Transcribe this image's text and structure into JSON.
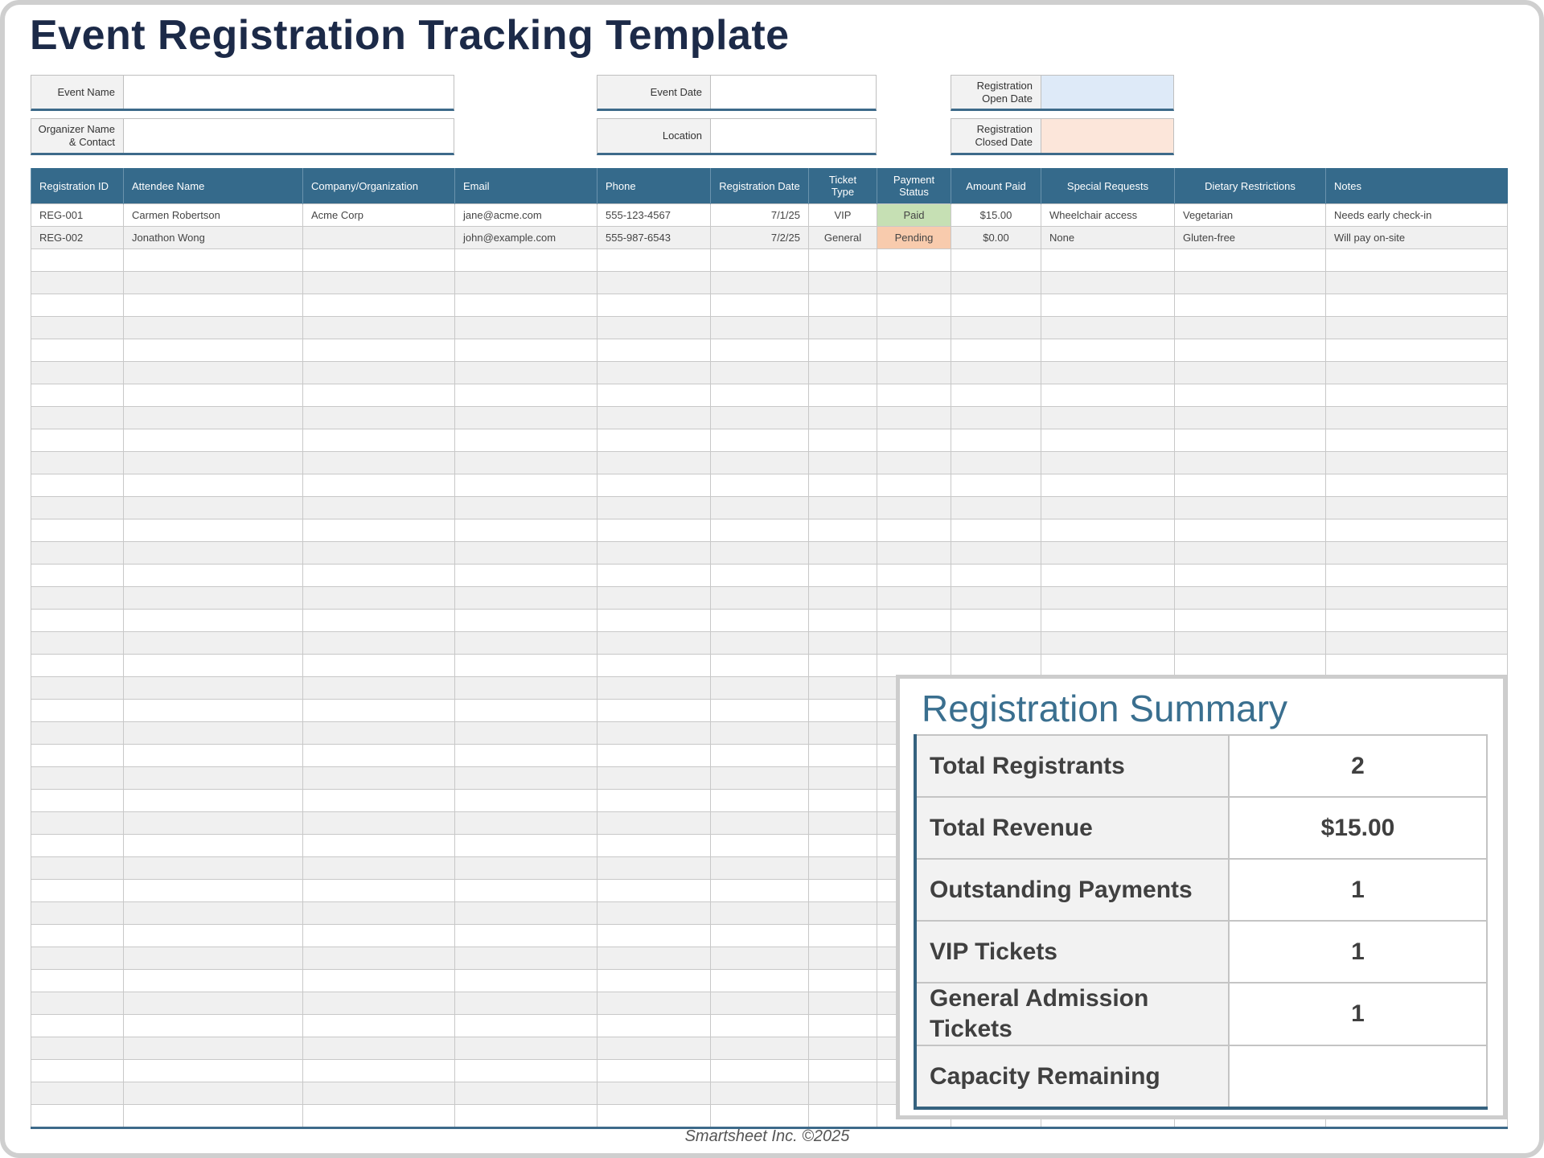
{
  "title": "Event Registration Tracking Template",
  "form": {
    "event_name": "Event Name",
    "organizer": "Organizer Name & Contact",
    "event_date": "Event Date",
    "location": "Location",
    "reg_open": "Registration Open Date",
    "reg_closed": "Registration Closed Date"
  },
  "colors": {
    "header": "#356a8b",
    "open_date_fill": "#deeaf8",
    "closed_date_fill": "#fce6da",
    "paid": "#c6e0b4",
    "pending": "#f8cbad"
  },
  "table": {
    "headers": [
      "Registration ID",
      "Attendee Name",
      "Company/Organization",
      "Email",
      "Phone",
      "Registration Date",
      "Ticket Type",
      "Payment Status",
      "Amount Paid",
      "Special Requests",
      "Dietary Restrictions",
      "Notes"
    ],
    "rows": [
      [
        "REG-001",
        "Carmen Robertson",
        "Acme Corp",
        "jane@acme.com",
        "555-123-4567",
        "7/1/25",
        "VIP",
        "Paid",
        "$15.00",
        "Wheelchair access",
        "Vegetarian",
        "Needs early check-in"
      ],
      [
        "REG-002",
        "Jonathon Wong",
        "",
        "john@example.com",
        "555-987-6543",
        "7/2/25",
        "General",
        "Pending",
        "$0.00",
        "None",
        "Gluten-free",
        "Will pay on-site"
      ]
    ]
  },
  "summary": {
    "title": "Registration Summary",
    "items": [
      {
        "label": "Total Registrants",
        "value": "2"
      },
      {
        "label": "Total Revenue",
        "value": "$15.00"
      },
      {
        "label": "Outstanding Payments",
        "value": "1"
      },
      {
        "label": "VIP Tickets",
        "value": "1"
      },
      {
        "label": "General Admission Tickets",
        "value": "1"
      },
      {
        "label": "Capacity Remaining",
        "value": ""
      }
    ]
  },
  "footer": "Smartsheet Inc. ©2025"
}
